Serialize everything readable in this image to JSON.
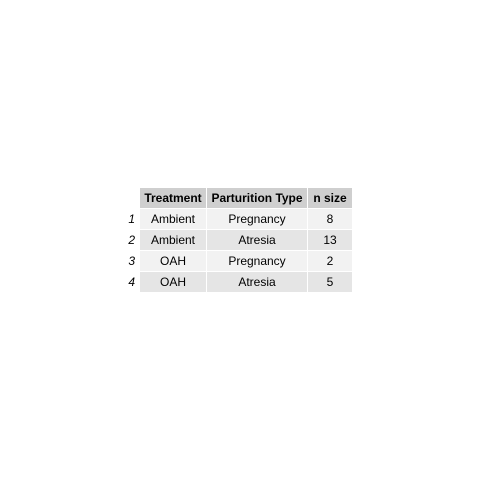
{
  "table": {
    "columns": [
      "Treatment",
      "Parturition Type",
      "n size"
    ],
    "rows": [
      {
        "index": "1",
        "treatment": "Ambient",
        "parturition": "Pregnancy",
        "n": "8"
      },
      {
        "index": "2",
        "treatment": "Ambient",
        "parturition": "Atresia",
        "n": "13"
      },
      {
        "index": "3",
        "treatment": "OAH",
        "parturition": "Pregnancy",
        "n": "2"
      },
      {
        "index": "4",
        "treatment": "OAH",
        "parturition": "Atresia",
        "n": "5"
      }
    ]
  }
}
